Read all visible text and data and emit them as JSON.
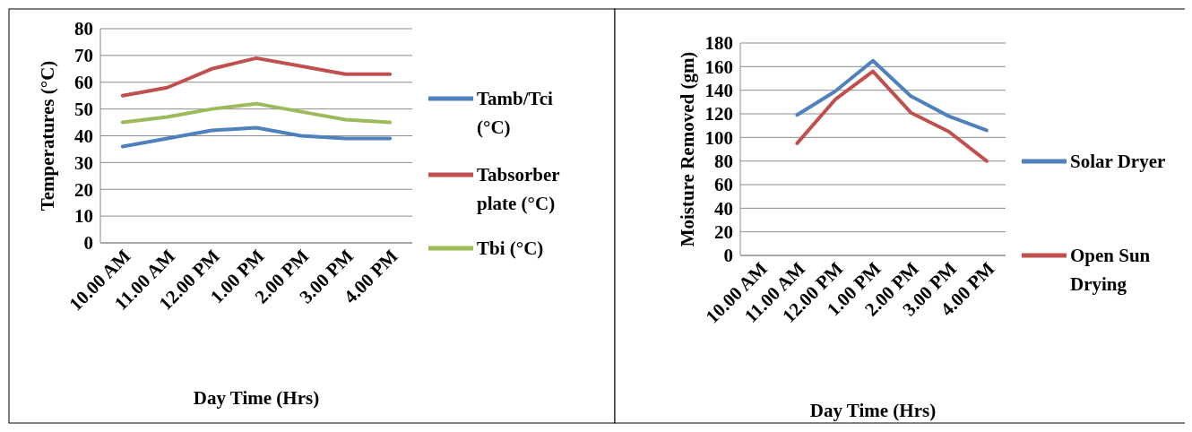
{
  "chart_data": [
    {
      "type": "line",
      "xlabel": "Day Time (Hrs)",
      "ylabel": "Temperatures (°C)",
      "categories": [
        "10.00 AM",
        "11.00 AM",
        "12.00 PM",
        "1.00 PM",
        "2.00 PM",
        "3.00 PM",
        "4.00 PM"
      ],
      "series": [
        {
          "name": "Tamb/Tci (°C)",
          "color": "#4f81bd",
          "values": [
            36,
            39,
            42,
            43,
            40,
            39,
            39
          ]
        },
        {
          "name": "Tabsorber plate (°C)",
          "color": "#c0504d",
          "values": [
            55,
            58,
            65,
            69,
            66,
            63,
            63
          ]
        },
        {
          "name": "Tbi (°C)",
          "color": "#9bbb59",
          "values": [
            45,
            47,
            50,
            52,
            49,
            46,
            45
          ]
        }
      ],
      "ylim": [
        0,
        80
      ],
      "yticks": [
        0,
        10,
        20,
        30,
        40,
        50,
        60,
        70,
        80
      ],
      "grid": "y",
      "legend": "right",
      "marker": "none"
    },
    {
      "type": "line",
      "xlabel": "Day Time (Hrs)",
      "ylabel": "Moisture Removed (gm)",
      "categories": [
        "10.00 AM",
        "11.00 AM",
        "12.00 PM",
        "1.00 PM",
        "2.00 PM",
        "3.00 PM",
        "4.00 PM"
      ],
      "series": [
        {
          "name": "Solar Dryer",
          "color": "#4f81bd",
          "values": [
            null,
            119,
            139,
            165,
            135,
            118,
            106
          ]
        },
        {
          "name": "Open Sun Drying",
          "color": "#c0504d",
          "values": [
            null,
            95,
            132,
            156,
            121,
            105,
            80
          ]
        }
      ],
      "ylim": [
        0,
        180
      ],
      "yticks": [
        0,
        20,
        40,
        60,
        80,
        100,
        120,
        140,
        160,
        180
      ],
      "grid": "y",
      "legend": "right",
      "marker": "none"
    }
  ]
}
